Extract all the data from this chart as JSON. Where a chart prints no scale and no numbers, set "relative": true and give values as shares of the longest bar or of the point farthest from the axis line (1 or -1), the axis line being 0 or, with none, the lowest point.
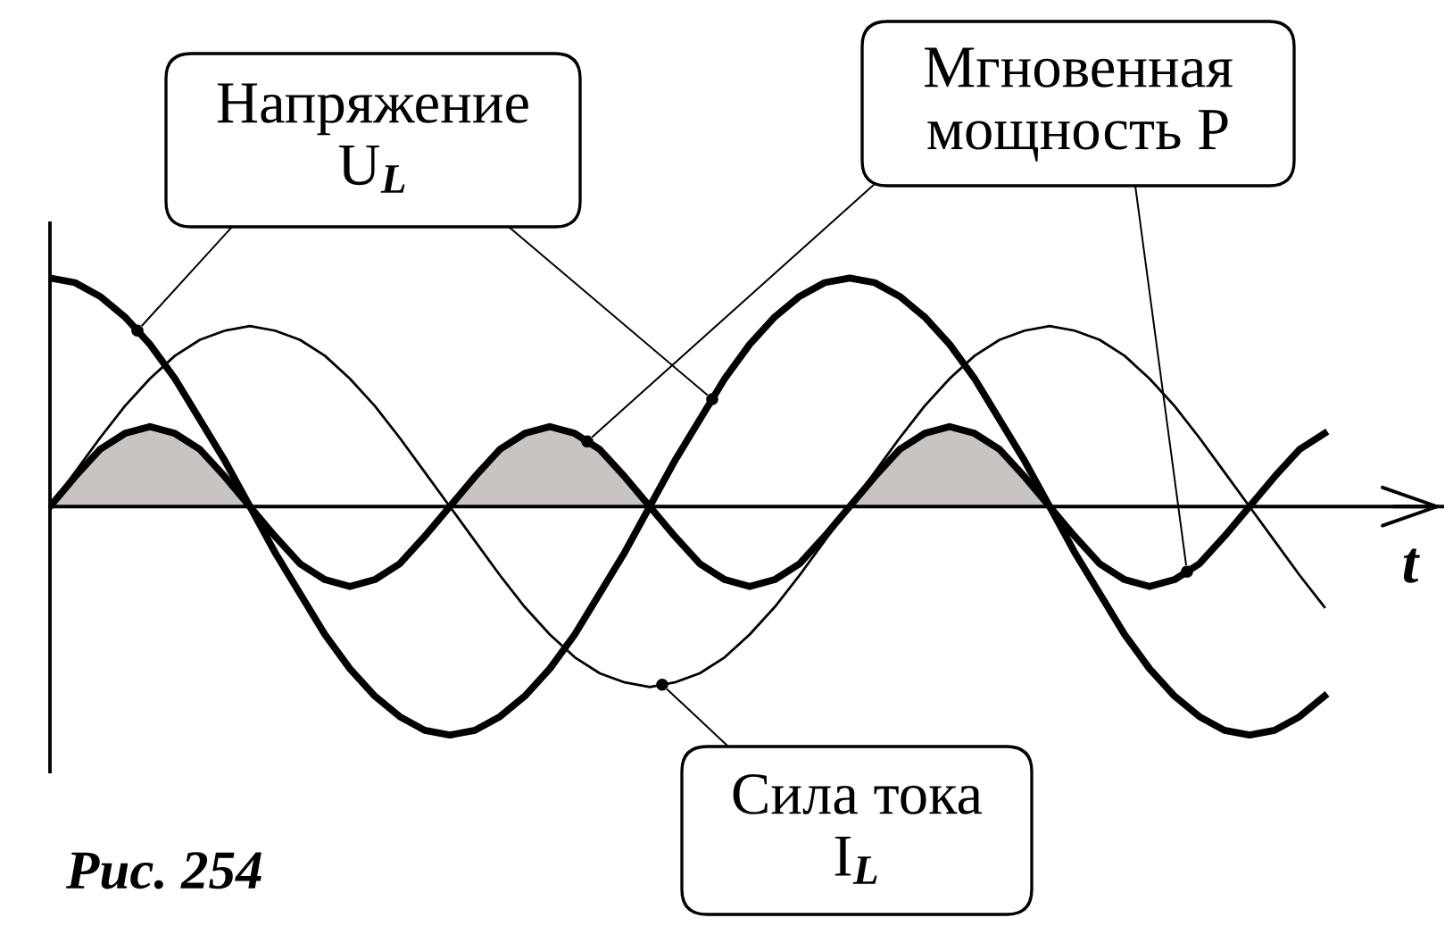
{
  "chart_data": {
    "type": "line",
    "relative": true,
    "xlabel": "t",
    "annotations": [
      "Рис. 254"
    ],
    "categories": [
      null,
      null,
      null,
      null,
      null,
      null,
      null,
      null,
      null,
      null,
      null,
      null,
      null,
      null,
      null,
      null,
      null,
      null,
      null,
      null,
      null,
      null,
      null,
      null,
      null,
      null,
      null,
      null,
      null,
      null,
      null,
      null,
      null,
      null,
      null,
      null,
      null,
      null,
      null,
      null,
      null,
      null,
      null,
      null,
      null,
      null,
      null,
      null,
      null,
      null,
      null,
      null
    ],
    "series": [
      {
        "type": "area",
        "color": "#c8c4c0",
        "values": [
          0,
          0.13,
          0.25,
          0.32,
          0.35,
          0.32,
          0.25,
          0.13,
          0,
          null,
          null,
          null,
          null,
          null,
          null,
          null,
          0,
          0.13,
          0.25,
          0.32,
          0.35,
          0.32,
          0.25,
          0.13,
          0,
          null,
          null,
          null,
          null,
          null,
          null,
          null,
          0,
          0.13,
          0.25,
          0.32,
          0.35,
          0.32,
          0.25,
          0.13,
          0,
          null,
          null,
          null,
          null,
          null,
          null,
          null,
          null,
          null,
          null,
          null
        ]
      },
      {
        "name": "Напряжение\nU$_{L}$",
        "color": "#000000",
        "values": [
          1,
          0.98,
          0.92,
          0.83,
          0.71,
          0.56,
          0.38,
          0.2,
          0,
          -0.2,
          -0.38,
          -0.56,
          -0.71,
          -0.83,
          -0.92,
          -0.98,
          -1,
          -0.98,
          -0.92,
          -0.83,
          -0.71,
          -0.56,
          -0.38,
          -0.2,
          0,
          0.2,
          0.38,
          0.56,
          0.71,
          0.83,
          0.92,
          0.98,
          1,
          0.98,
          0.92,
          0.83,
          0.71,
          0.56,
          0.38,
          0.2,
          0,
          -0.2,
          -0.38,
          -0.56,
          -0.71,
          -0.83,
          -0.92,
          -0.98,
          -1,
          -0.98,
          -0.92,
          -0.83
        ]
      },
      {
        "name": "Мгновенная\nмощность P",
        "color": "#000000",
        "values": [
          0,
          0.13,
          0.25,
          0.32,
          0.35,
          0.32,
          0.25,
          0.13,
          0,
          -0.13,
          -0.25,
          -0.32,
          -0.35,
          -0.32,
          -0.25,
          -0.13,
          0,
          0.13,
          0.25,
          0.32,
          0.35,
          0.32,
          0.25,
          0.13,
          0,
          -0.13,
          -0.25,
          -0.32,
          -0.35,
          -0.32,
          -0.25,
          -0.13,
          0,
          0.13,
          0.25,
          0.32,
          0.35,
          0.32,
          0.25,
          0.13,
          0,
          -0.13,
          -0.25,
          -0.32,
          -0.35,
          -0.32,
          -0.25,
          -0.13,
          0,
          0.13,
          0.25,
          0.32
        ]
      },
      {
        "name": "Сила тока\nI$_{L}$",
        "color": "#000000",
        "values": [
          0,
          0.15,
          0.3,
          0.44,
          0.56,
          0.66,
          0.73,
          0.77,
          0.79,
          0.77,
          0.73,
          0.66,
          0.56,
          0.44,
          0.3,
          0.15,
          0,
          -0.15,
          -0.3,
          -0.44,
          -0.56,
          -0.66,
          -0.73,
          -0.77,
          -0.79,
          -0.77,
          -0.73,
          -0.66,
          -0.56,
          -0.44,
          -0.3,
          -0.15,
          0,
          0.15,
          0.3,
          0.44,
          0.56,
          0.66,
          0.73,
          0.77,
          0.79,
          0.77,
          0.73,
          0.66,
          0.56,
          0.44,
          0.3,
          0.15,
          0,
          -0.15,
          -0.3,
          -0.44
        ]
      }
    ]
  }
}
